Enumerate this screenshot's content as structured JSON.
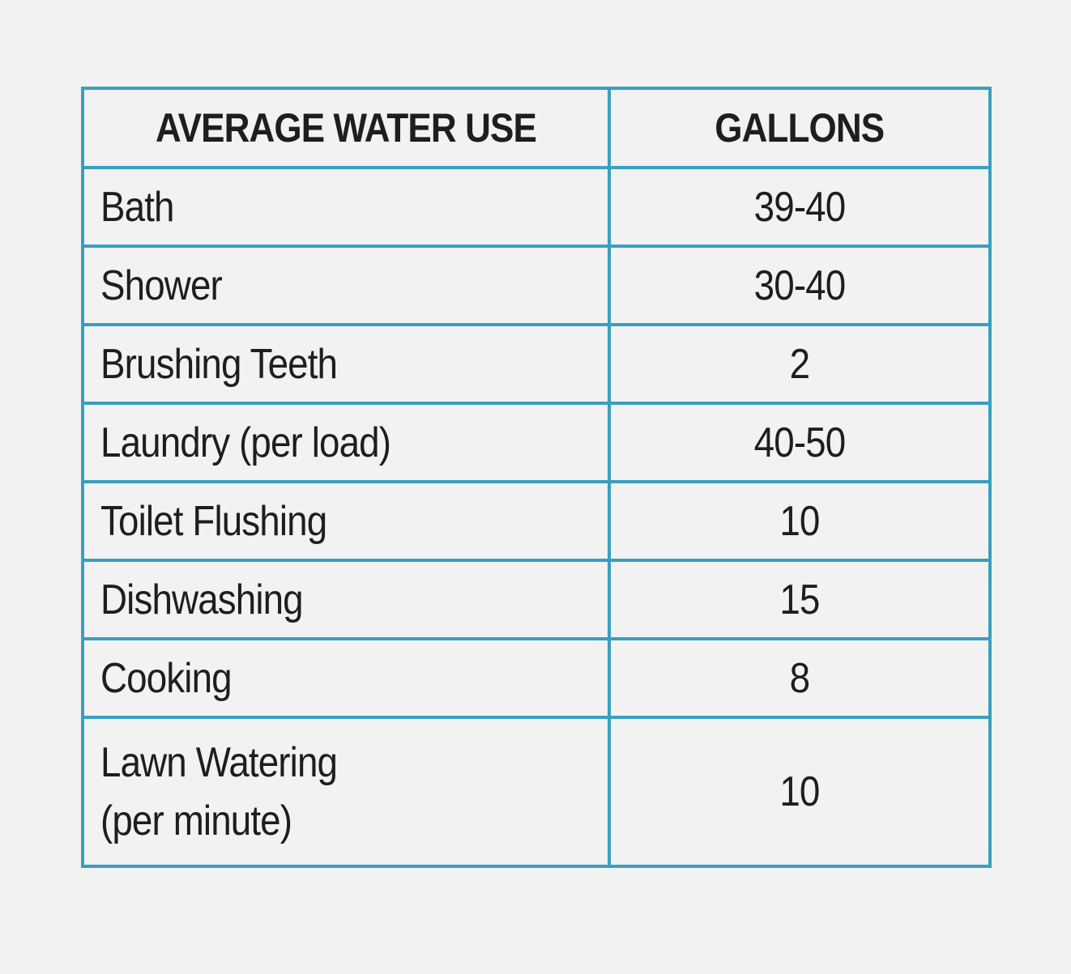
{
  "table": {
    "headers": [
      "AVERAGE WATER USE",
      "GALLONS"
    ],
    "rows": [
      {
        "activity": "Bath",
        "gallons": "39-40"
      },
      {
        "activity": "Shower",
        "gallons": "30-40"
      },
      {
        "activity": "Brushing Teeth",
        "gallons": "2"
      },
      {
        "activity": "Laundry (per load)",
        "gallons": "40-50"
      },
      {
        "activity": "Toilet Flushing",
        "gallons": "10"
      },
      {
        "activity": "Dishwashing",
        "gallons": "15"
      },
      {
        "activity": "Cooking",
        "gallons": "8"
      },
      {
        "activity_lines": [
          "Lawn Watering",
          "(per minute)"
        ],
        "gallons": "10"
      }
    ]
  },
  "colors": {
    "border": "#3a9fbf",
    "background": "#f2f2f2",
    "text": "#1e1e1e"
  }
}
